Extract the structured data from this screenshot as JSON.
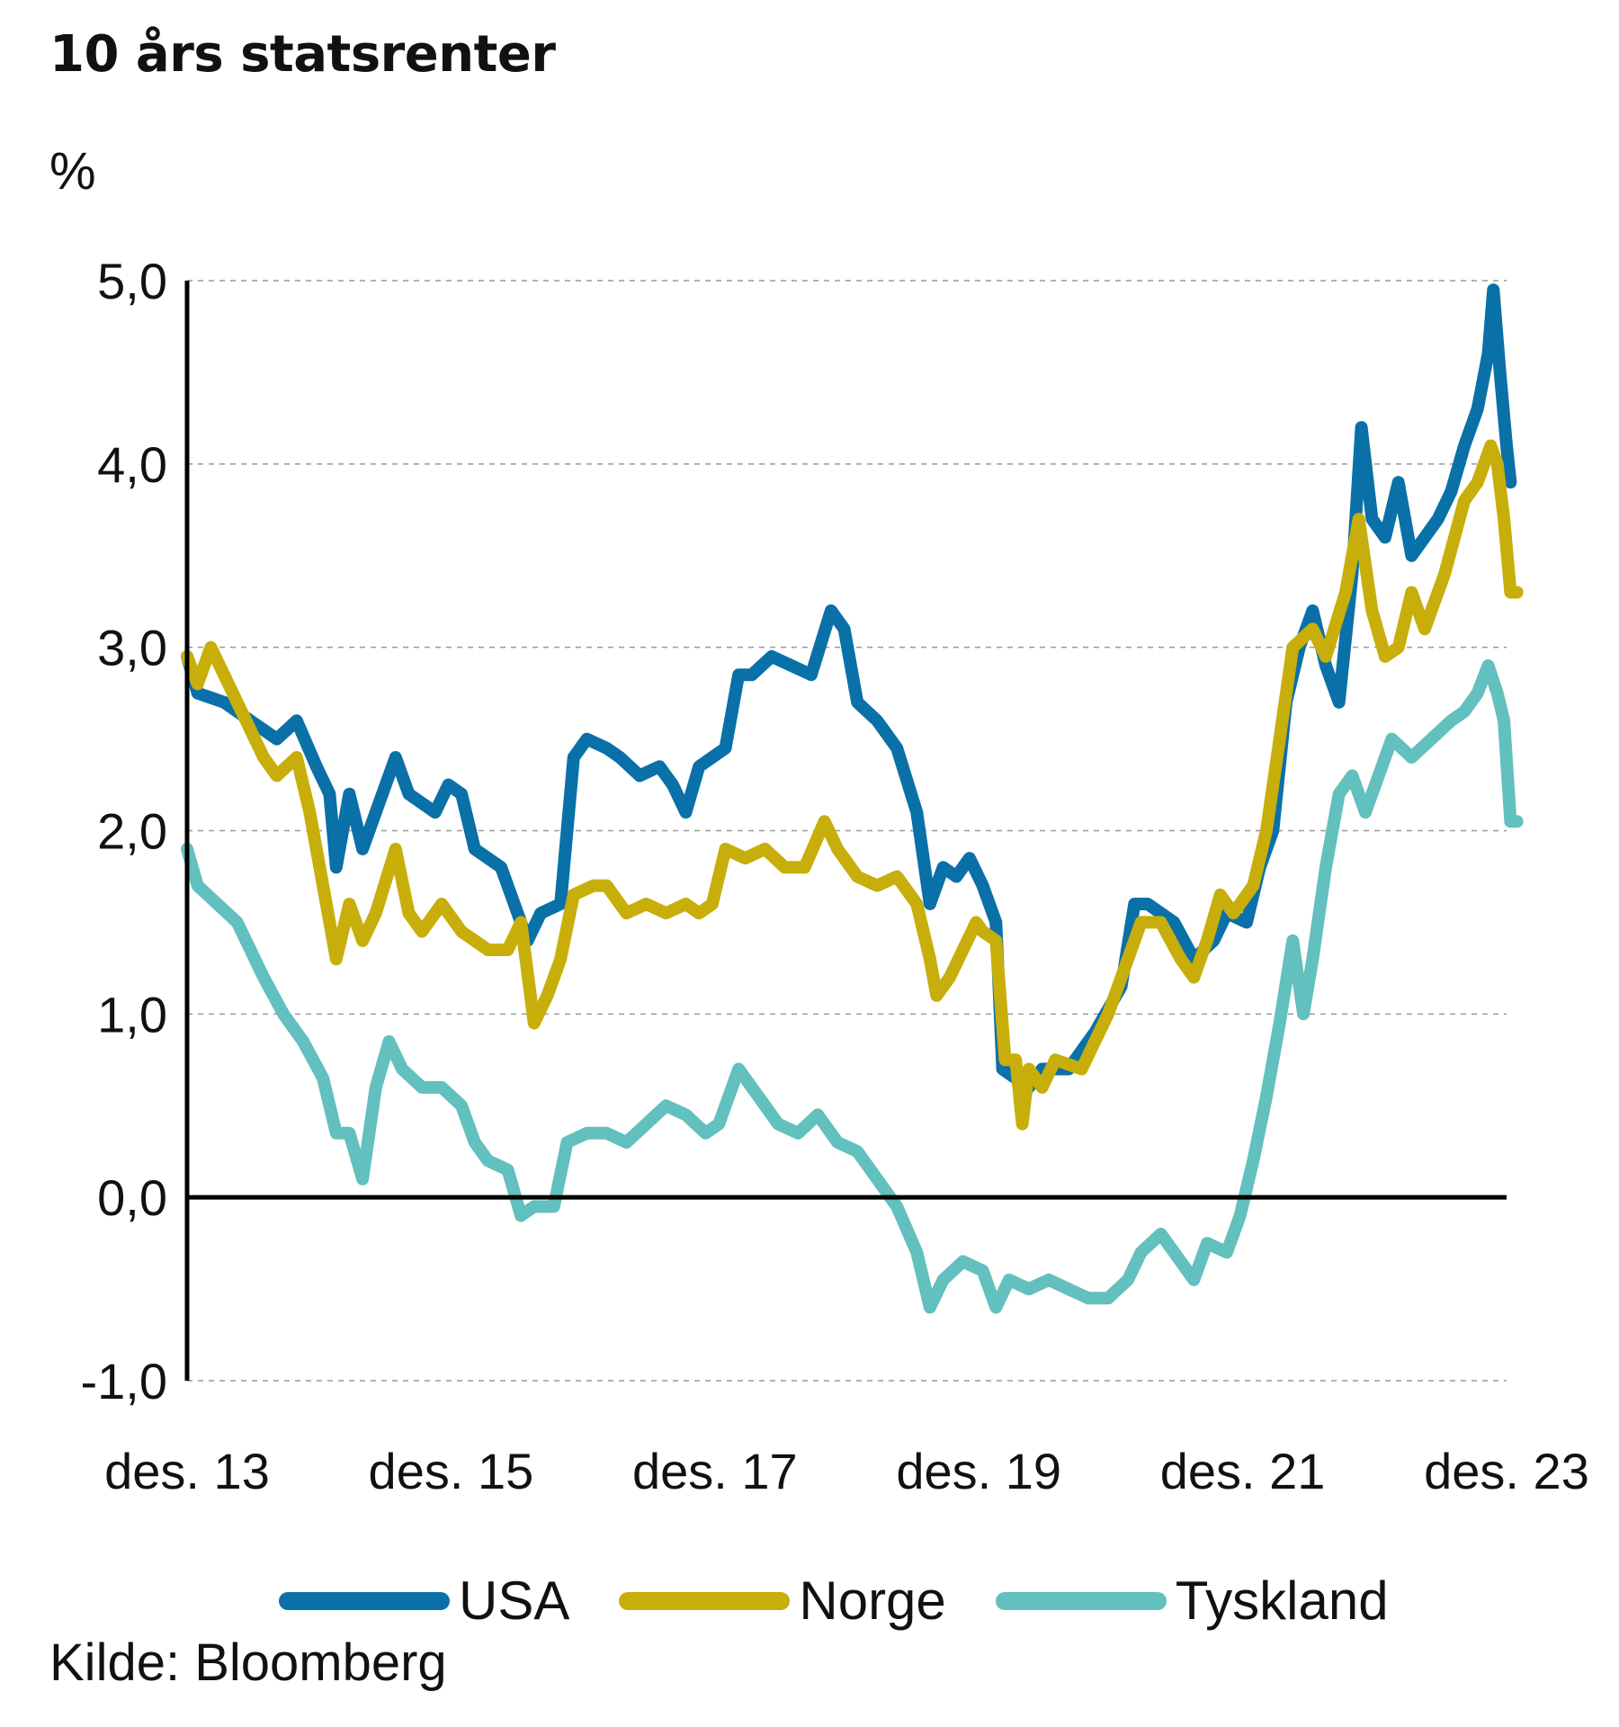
{
  "title": "10 års statsrenter",
  "source": "Kilde: Bloomberg",
  "chart_data": {
    "type": "line",
    "ylabel": "%",
    "xlabel": "",
    "ylim": [
      -1.0,
      5.0
    ],
    "xlim": [
      2013.92,
      2023.92
    ],
    "grid": true,
    "legend": "bottom",
    "y_ticks": [
      5.0,
      4.0,
      3.0,
      2.0,
      1.0,
      0.0,
      -1.0
    ],
    "y_tick_labels": [
      "5,0",
      "4,0",
      "3,0",
      "2,0",
      "1,0",
      "0,0",
      "-1,0"
    ],
    "x_ticks": [
      2013.92,
      2015.92,
      2017.92,
      2019.92,
      2021.92,
      2023.92
    ],
    "x_tick_labels": [
      "des. 13",
      "des. 15",
      "des. 17",
      "des. 19",
      "des. 21",
      "des. 23"
    ],
    "series": [
      {
        "name": "USA",
        "color": "#0a70a8",
        "points": [
          [
            2013.92,
            2.95
          ],
          [
            2014.0,
            2.75
          ],
          [
            2014.2,
            2.7
          ],
          [
            2014.4,
            2.6
          ],
          [
            2014.6,
            2.5
          ],
          [
            2014.75,
            2.6
          ],
          [
            2014.9,
            2.35
          ],
          [
            2015.0,
            2.2
          ],
          [
            2015.05,
            1.8
          ],
          [
            2015.15,
            2.2
          ],
          [
            2015.25,
            1.9
          ],
          [
            2015.4,
            2.2
          ],
          [
            2015.5,
            2.4
          ],
          [
            2015.6,
            2.2
          ],
          [
            2015.8,
            2.1
          ],
          [
            2015.9,
            2.25
          ],
          [
            2016.0,
            2.2
          ],
          [
            2016.1,
            1.9
          ],
          [
            2016.3,
            1.8
          ],
          [
            2016.5,
            1.4
          ],
          [
            2016.6,
            1.55
          ],
          [
            2016.75,
            1.6
          ],
          [
            2016.85,
            2.4
          ],
          [
            2016.95,
            2.5
          ],
          [
            2017.1,
            2.45
          ],
          [
            2017.2,
            2.4
          ],
          [
            2017.35,
            2.3
          ],
          [
            2017.5,
            2.35
          ],
          [
            2017.6,
            2.25
          ],
          [
            2017.7,
            2.1
          ],
          [
            2017.8,
            2.35
          ],
          [
            2017.9,
            2.4
          ],
          [
            2018.0,
            2.45
          ],
          [
            2018.1,
            2.85
          ],
          [
            2018.2,
            2.85
          ],
          [
            2018.35,
            2.95
          ],
          [
            2018.5,
            2.9
          ],
          [
            2018.65,
            2.85
          ],
          [
            2018.8,
            3.2
          ],
          [
            2018.9,
            3.1
          ],
          [
            2019.0,
            2.7
          ],
          [
            2019.15,
            2.6
          ],
          [
            2019.3,
            2.45
          ],
          [
            2019.45,
            2.1
          ],
          [
            2019.55,
            1.6
          ],
          [
            2019.65,
            1.8
          ],
          [
            2019.75,
            1.75
          ],
          [
            2019.85,
            1.85
          ],
          [
            2019.95,
            1.7
          ],
          [
            2020.05,
            1.5
          ],
          [
            2020.1,
            0.7
          ],
          [
            2020.2,
            0.65
          ],
          [
            2020.3,
            0.6
          ],
          [
            2020.4,
            0.7
          ],
          [
            2020.6,
            0.7
          ],
          [
            2020.8,
            0.9
          ],
          [
            2021.0,
            1.15
          ],
          [
            2021.1,
            1.6
          ],
          [
            2021.2,
            1.6
          ],
          [
            2021.4,
            1.5
          ],
          [
            2021.55,
            1.3
          ],
          [
            2021.7,
            1.4
          ],
          [
            2021.8,
            1.55
          ],
          [
            2021.95,
            1.5
          ],
          [
            2022.05,
            1.8
          ],
          [
            2022.15,
            2.0
          ],
          [
            2022.25,
            2.7
          ],
          [
            2022.35,
            3.0
          ],
          [
            2022.45,
            3.2
          ],
          [
            2022.55,
            2.9
          ],
          [
            2022.65,
            2.7
          ],
          [
            2022.75,
            3.4
          ],
          [
            2022.82,
            4.2
          ],
          [
            2022.9,
            3.7
          ],
          [
            2023.0,
            3.6
          ],
          [
            2023.1,
            3.9
          ],
          [
            2023.2,
            3.5
          ],
          [
            2023.3,
            3.6
          ],
          [
            2023.4,
            3.7
          ],
          [
            2023.5,
            3.85
          ],
          [
            2023.6,
            4.1
          ],
          [
            2023.7,
            4.3
          ],
          [
            2023.78,
            4.6
          ],
          [
            2023.82,
            4.95
          ],
          [
            2023.87,
            4.5
          ],
          [
            2023.92,
            4.1
          ],
          [
            2023.95,
            3.9
          ]
        ]
      },
      {
        "name": "Norge",
        "color": "#c8ae0a",
        "points": [
          [
            2013.92,
            2.95
          ],
          [
            2014.0,
            2.8
          ],
          [
            2014.1,
            3.0
          ],
          [
            2014.2,
            2.85
          ],
          [
            2014.3,
            2.7
          ],
          [
            2014.5,
            2.4
          ],
          [
            2014.6,
            2.3
          ],
          [
            2014.75,
            2.4
          ],
          [
            2014.85,
            2.1
          ],
          [
            2014.95,
            1.7
          ],
          [
            2015.05,
            1.3
          ],
          [
            2015.15,
            1.6
          ],
          [
            2015.25,
            1.4
          ],
          [
            2015.35,
            1.55
          ],
          [
            2015.5,
            1.9
          ],
          [
            2015.6,
            1.55
          ],
          [
            2015.7,
            1.45
          ],
          [
            2015.85,
            1.6
          ],
          [
            2016.0,
            1.45
          ],
          [
            2016.2,
            1.35
          ],
          [
            2016.35,
            1.35
          ],
          [
            2016.45,
            1.5
          ],
          [
            2016.55,
            0.95
          ],
          [
            2016.65,
            1.1
          ],
          [
            2016.75,
            1.3
          ],
          [
            2016.85,
            1.65
          ],
          [
            2017.0,
            1.7
          ],
          [
            2017.1,
            1.7
          ],
          [
            2017.25,
            1.55
          ],
          [
            2017.4,
            1.6
          ],
          [
            2017.55,
            1.55
          ],
          [
            2017.7,
            1.6
          ],
          [
            2017.8,
            1.55
          ],
          [
            2017.9,
            1.6
          ],
          [
            2018.0,
            1.9
          ],
          [
            2018.15,
            1.85
          ],
          [
            2018.3,
            1.9
          ],
          [
            2018.45,
            1.8
          ],
          [
            2018.6,
            1.8
          ],
          [
            2018.75,
            2.05
          ],
          [
            2018.85,
            1.9
          ],
          [
            2019.0,
            1.75
          ],
          [
            2019.15,
            1.7
          ],
          [
            2019.3,
            1.75
          ],
          [
            2019.45,
            1.6
          ],
          [
            2019.55,
            1.3
          ],
          [
            2019.6,
            1.1
          ],
          [
            2019.7,
            1.2
          ],
          [
            2019.8,
            1.35
          ],
          [
            2019.9,
            1.5
          ],
          [
            2019.95,
            1.45
          ],
          [
            2020.05,
            1.4
          ],
          [
            2020.12,
            0.75
          ],
          [
            2020.2,
            0.75
          ],
          [
            2020.25,
            0.4
          ],
          [
            2020.3,
            0.7
          ],
          [
            2020.4,
            0.6
          ],
          [
            2020.5,
            0.75
          ],
          [
            2020.7,
            0.7
          ],
          [
            2020.9,
            1.0
          ],
          [
            2021.05,
            1.3
          ],
          [
            2021.15,
            1.5
          ],
          [
            2021.3,
            1.5
          ],
          [
            2021.45,
            1.3
          ],
          [
            2021.55,
            1.2
          ],
          [
            2021.65,
            1.4
          ],
          [
            2021.75,
            1.65
          ],
          [
            2021.85,
            1.55
          ],
          [
            2022.0,
            1.7
          ],
          [
            2022.1,
            2.0
          ],
          [
            2022.2,
            2.5
          ],
          [
            2022.3,
            3.0
          ],
          [
            2022.45,
            3.1
          ],
          [
            2022.55,
            2.95
          ],
          [
            2022.7,
            3.3
          ],
          [
            2022.8,
            3.7
          ],
          [
            2022.9,
            3.2
          ],
          [
            2023.0,
            2.95
          ],
          [
            2023.1,
            3.0
          ],
          [
            2023.2,
            3.3
          ],
          [
            2023.3,
            3.1
          ],
          [
            2023.45,
            3.4
          ],
          [
            2023.6,
            3.8
          ],
          [
            2023.7,
            3.9
          ],
          [
            2023.8,
            4.1
          ],
          [
            2023.85,
            4.0
          ],
          [
            2023.9,
            3.7
          ],
          [
            2023.95,
            3.3
          ],
          [
            2024.0,
            3.3
          ]
        ]
      },
      {
        "name": "Tyskland",
        "color": "#62c0be",
        "points": [
          [
            2013.92,
            1.9
          ],
          [
            2014.0,
            1.7
          ],
          [
            2014.15,
            1.6
          ],
          [
            2014.3,
            1.5
          ],
          [
            2014.5,
            1.2
          ],
          [
            2014.65,
            1.0
          ],
          [
            2014.8,
            0.85
          ],
          [
            2014.95,
            0.65
          ],
          [
            2015.05,
            0.35
          ],
          [
            2015.15,
            0.35
          ],
          [
            2015.25,
            0.1
          ],
          [
            2015.35,
            0.6
          ],
          [
            2015.45,
            0.85
          ],
          [
            2015.55,
            0.7
          ],
          [
            2015.7,
            0.6
          ],
          [
            2015.85,
            0.6
          ],
          [
            2016.0,
            0.5
          ],
          [
            2016.1,
            0.3
          ],
          [
            2016.2,
            0.2
          ],
          [
            2016.35,
            0.15
          ],
          [
            2016.45,
            -0.1
          ],
          [
            2016.55,
            -0.05
          ],
          [
            2016.7,
            -0.05
          ],
          [
            2016.8,
            0.3
          ],
          [
            2016.95,
            0.35
          ],
          [
            2017.1,
            0.35
          ],
          [
            2017.25,
            0.3
          ],
          [
            2017.4,
            0.4
          ],
          [
            2017.55,
            0.5
          ],
          [
            2017.7,
            0.45
          ],
          [
            2017.85,
            0.35
          ],
          [
            2017.95,
            0.4
          ],
          [
            2018.1,
            0.7
          ],
          [
            2018.25,
            0.55
          ],
          [
            2018.4,
            0.4
          ],
          [
            2018.55,
            0.35
          ],
          [
            2018.7,
            0.45
          ],
          [
            2018.85,
            0.3
          ],
          [
            2019.0,
            0.25
          ],
          [
            2019.15,
            0.1
          ],
          [
            2019.3,
            -0.05
          ],
          [
            2019.45,
            -0.3
          ],
          [
            2019.55,
            -0.6
          ],
          [
            2019.65,
            -0.45
          ],
          [
            2019.8,
            -0.35
          ],
          [
            2019.95,
            -0.4
          ],
          [
            2020.05,
            -0.6
          ],
          [
            2020.15,
            -0.45
          ],
          [
            2020.3,
            -0.5
          ],
          [
            2020.45,
            -0.45
          ],
          [
            2020.6,
            -0.5
          ],
          [
            2020.75,
            -0.55
          ],
          [
            2020.9,
            -0.55
          ],
          [
            2021.05,
            -0.45
          ],
          [
            2021.15,
            -0.3
          ],
          [
            2021.3,
            -0.2
          ],
          [
            2021.45,
            -0.35
          ],
          [
            2021.55,
            -0.45
          ],
          [
            2021.65,
            -0.25
          ],
          [
            2021.8,
            -0.3
          ],
          [
            2021.9,
            -0.1
          ],
          [
            2022.0,
            0.2
          ],
          [
            2022.1,
            0.55
          ],
          [
            2022.2,
            0.95
          ],
          [
            2022.3,
            1.4
          ],
          [
            2022.38,
            1.0
          ],
          [
            2022.45,
            1.3
          ],
          [
            2022.55,
            1.8
          ],
          [
            2022.65,
            2.2
          ],
          [
            2022.75,
            2.3
          ],
          [
            2022.85,
            2.1
          ],
          [
            2022.95,
            2.3
          ],
          [
            2023.05,
            2.5
          ],
          [
            2023.2,
            2.4
          ],
          [
            2023.35,
            2.5
          ],
          [
            2023.5,
            2.6
          ],
          [
            2023.6,
            2.65
          ],
          [
            2023.7,
            2.75
          ],
          [
            2023.78,
            2.9
          ],
          [
            2023.85,
            2.75
          ],
          [
            2023.9,
            2.6
          ],
          [
            2023.95,
            2.05
          ],
          [
            2024.0,
            2.05
          ]
        ]
      }
    ]
  }
}
